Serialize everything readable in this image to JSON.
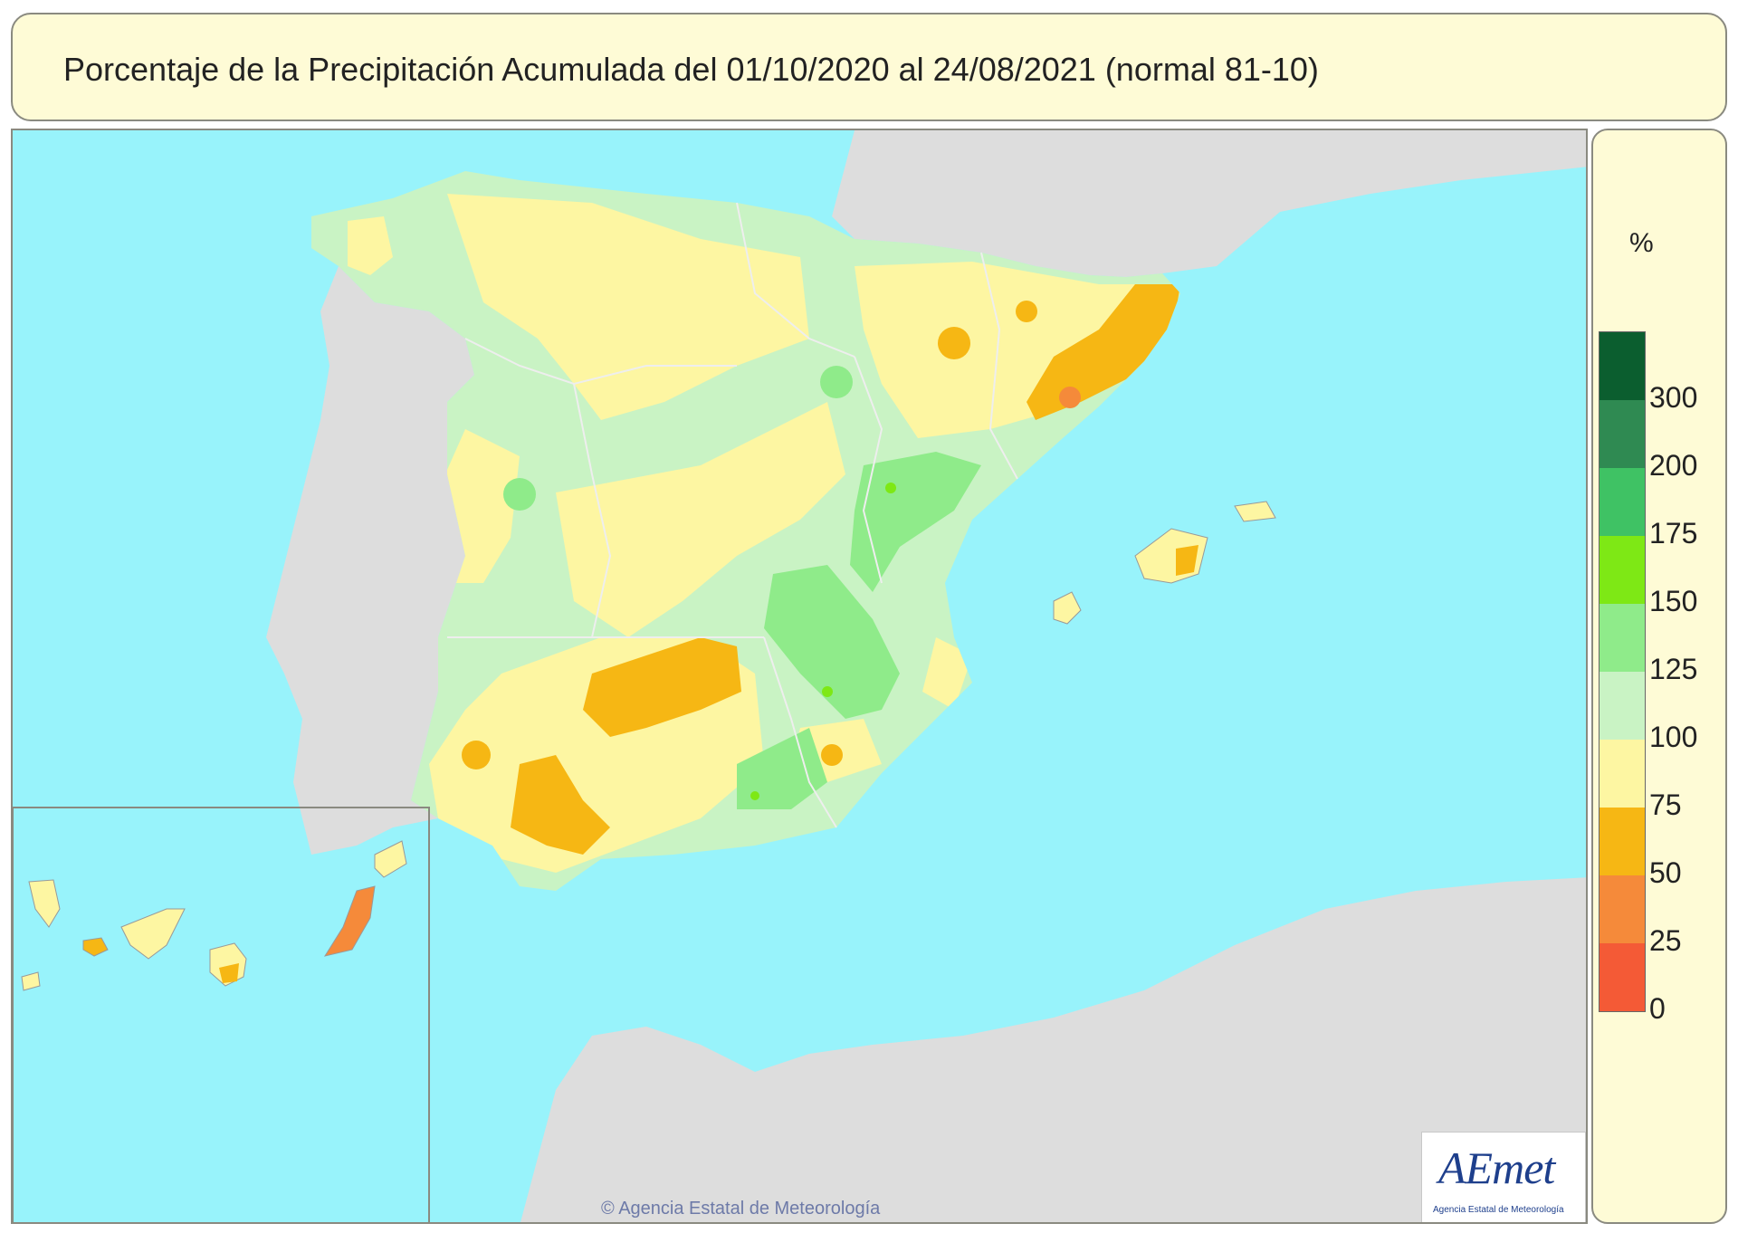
{
  "title": "Porcentaje de la Precipitación Acumulada del 01/10/2020 al 24/08/2021 (normal 81-10)",
  "legend": {
    "unit": "%",
    "labels": [
      "300",
      "200",
      "175",
      "150",
      "125",
      "100",
      "75",
      "50",
      "25",
      "0"
    ],
    "colors": [
      "#0b5e2f",
      "#2f8a52",
      "#3fc264",
      "#7ee815",
      "#8feb8a",
      "#c9f3c4",
      "#fdf6a2",
      "#f6b714",
      "#f58a3a",
      "#f45a36"
    ]
  },
  "colors": {
    "sea": "#98f3fb",
    "land_outside": "#dddddd",
    "boundary": "#eeeeee"
  },
  "credit": "© Agencia Estatal de Meteorología",
  "logo": {
    "text": "AEmet",
    "subtitle": "Agencia Estatal de Meteorología"
  }
}
